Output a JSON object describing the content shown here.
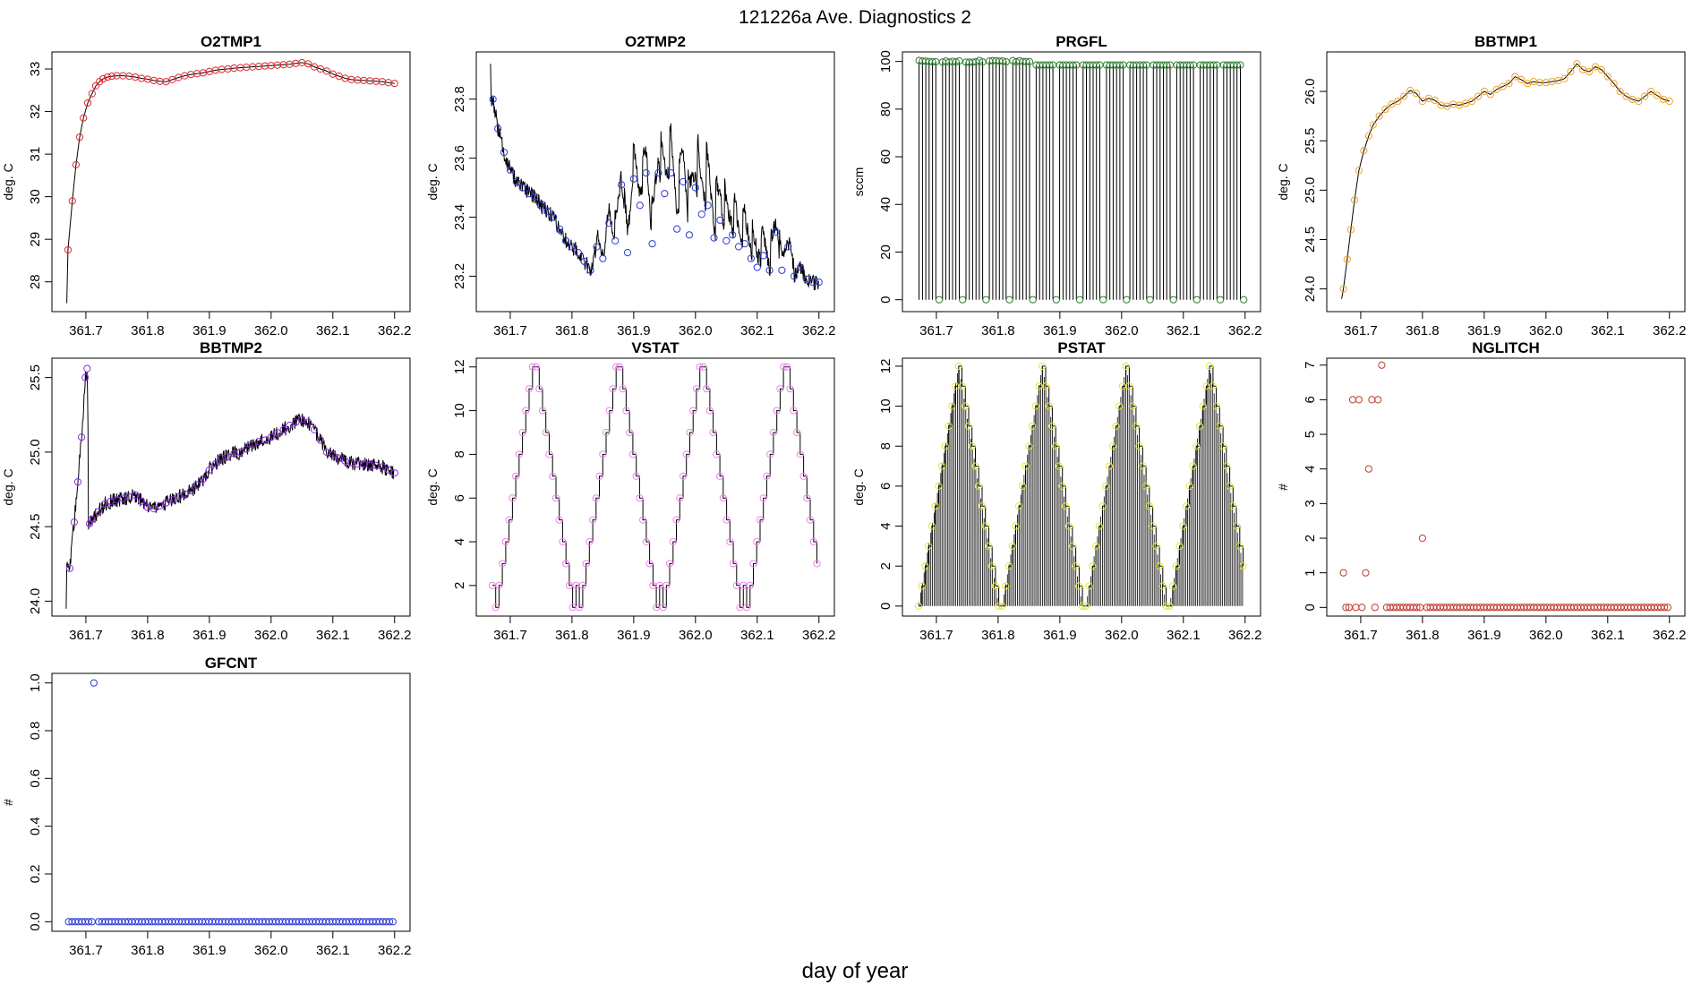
{
  "figure": {
    "title": "121226a   Ave. Diagnostics 2",
    "xlabel": "day of year"
  },
  "chart_data": [
    {
      "type": "line",
      "name": "O2TMP1",
      "title": "O2TMP1",
      "ylabel": "deg. C",
      "point_color": "#e0292f",
      "xlim": [
        361.645,
        362.225
      ],
      "ylim": [
        27.3,
        33.4
      ],
      "xticks": [
        "361.7",
        "361.8",
        "361.9",
        "362.0",
        "362.1",
        "362.2"
      ],
      "yticks": [
        "28",
        "29",
        "30",
        "31",
        "32",
        "33"
      ],
      "series_points": [
        [
          361.671,
          28.75
        ],
        [
          361.678,
          29.9
        ],
        [
          361.684,
          30.75
        ],
        [
          361.69,
          31.4
        ],
        [
          361.696,
          31.85
        ],
        [
          361.703,
          32.2
        ],
        [
          361.71,
          32.42
        ],
        [
          361.716,
          32.6
        ],
        [
          361.722,
          32.7
        ],
        [
          361.728,
          32.77
        ],
        [
          361.735,
          32.81
        ],
        [
          361.742,
          32.83
        ],
        [
          361.75,
          32.84
        ],
        [
          361.76,
          32.84
        ],
        [
          361.77,
          32.83
        ],
        [
          361.78,
          32.81
        ],
        [
          361.79,
          32.78
        ],
        [
          361.8,
          32.76
        ],
        [
          361.81,
          32.73
        ],
        [
          361.82,
          32.71
        ],
        [
          361.83,
          32.7
        ],
        [
          361.84,
          32.75
        ],
        [
          361.85,
          32.8
        ],
        [
          361.86,
          32.84
        ],
        [
          361.87,
          32.87
        ],
        [
          361.88,
          32.89
        ],
        [
          361.89,
          32.91
        ],
        [
          361.9,
          32.94
        ],
        [
          361.91,
          32.97
        ],
        [
          361.92,
          32.99
        ],
        [
          361.93,
          33.0
        ],
        [
          361.94,
          33.02
        ],
        [
          361.95,
          33.03
        ],
        [
          361.96,
          33.04
        ],
        [
          361.97,
          33.05
        ],
        [
          361.98,
          33.06
        ],
        [
          361.99,
          33.07
        ],
        [
          362.0,
          33.08
        ],
        [
          362.01,
          33.09
        ],
        [
          362.02,
          33.1
        ],
        [
          362.03,
          33.11
        ],
        [
          362.04,
          33.13
        ],
        [
          362.05,
          33.15
        ],
        [
          362.06,
          33.12
        ],
        [
          362.07,
          33.05
        ],
        [
          362.08,
          33.0
        ],
        [
          362.09,
          32.95
        ],
        [
          362.1,
          32.88
        ],
        [
          362.11,
          32.83
        ],
        [
          362.12,
          32.78
        ],
        [
          362.13,
          32.75
        ],
        [
          362.14,
          32.74
        ],
        [
          362.15,
          32.73
        ],
        [
          362.16,
          32.72
        ],
        [
          362.17,
          32.71
        ],
        [
          362.18,
          32.7
        ],
        [
          362.19,
          32.68
        ],
        [
          362.2,
          32.66
        ]
      ]
    },
    {
      "type": "line",
      "name": "O2TMP2",
      "title": "O2TMP2",
      "ylabel": "deg. C",
      "point_color": "#2a3ad6",
      "xlim": [
        361.645,
        362.225
      ],
      "ylim": [
        23.08,
        23.96
      ],
      "xticks": [
        "361.7",
        "361.8",
        "361.9",
        "362.0",
        "362.1",
        "362.2"
      ],
      "yticks": [
        "23.2",
        "23.4",
        "23.6",
        "23.8"
      ],
      "series_points": [
        [
          361.672,
          23.8
        ],
        [
          361.68,
          23.7
        ],
        [
          361.69,
          23.62
        ],
        [
          361.7,
          23.56
        ],
        [
          361.71,
          23.52
        ],
        [
          361.72,
          23.5
        ],
        [
          361.73,
          23.48
        ],
        [
          361.74,
          23.47
        ],
        [
          361.75,
          23.44
        ],
        [
          361.76,
          23.42
        ],
        [
          361.77,
          23.4
        ],
        [
          361.78,
          23.36
        ],
        [
          361.79,
          23.32
        ],
        [
          361.8,
          23.3
        ],
        [
          361.81,
          23.28
        ],
        [
          361.82,
          23.25
        ],
        [
          361.83,
          23.22
        ],
        [
          361.84,
          23.3
        ],
        [
          361.85,
          23.26
        ],
        [
          361.86,
          23.38
        ],
        [
          361.87,
          23.32
        ],
        [
          361.88,
          23.51
        ],
        [
          361.89,
          23.28
        ],
        [
          361.9,
          23.53
        ],
        [
          361.91,
          23.44
        ],
        [
          361.92,
          23.55
        ],
        [
          361.93,
          23.31
        ],
        [
          361.94,
          23.55
        ],
        [
          361.95,
          23.48
        ],
        [
          361.96,
          23.55
        ],
        [
          361.97,
          23.36
        ],
        [
          361.98,
          23.52
        ],
        [
          361.99,
          23.34
        ],
        [
          362.0,
          23.5
        ],
        [
          362.01,
          23.41
        ],
        [
          362.02,
          23.44
        ],
        [
          362.03,
          23.33
        ],
        [
          362.04,
          23.39
        ],
        [
          362.05,
          23.32
        ],
        [
          362.06,
          23.34
        ],
        [
          362.07,
          23.3
        ],
        [
          362.08,
          23.31
        ],
        [
          362.09,
          23.26
        ],
        [
          362.1,
          23.23
        ],
        [
          362.11,
          23.27
        ],
        [
          362.12,
          23.22
        ],
        [
          362.13,
          23.35
        ],
        [
          362.14,
          23.22
        ],
        [
          362.15,
          23.3
        ],
        [
          362.16,
          23.2
        ],
        [
          362.17,
          23.23
        ],
        [
          362.18,
          23.19
        ],
        [
          362.19,
          23.18
        ],
        [
          362.2,
          23.18
        ]
      ]
    },
    {
      "type": "line",
      "name": "PRGFL",
      "title": "PRGFL",
      "ylabel": "sccm",
      "point_color": "#2f7d2f",
      "xlim": [
        361.645,
        362.225
      ],
      "ylim": [
        -5,
        104
      ],
      "xticks": [
        "361.7",
        "361.8",
        "361.9",
        "362.0",
        "362.1",
        "362.2"
      ],
      "yticks": [
        "0",
        "20",
        "40",
        "60",
        "80",
        "100"
      ],
      "levels": [
        100,
        98.5,
        0
      ]
    },
    {
      "type": "line",
      "name": "BBTMP1",
      "title": "BBTMP1",
      "ylabel": "deg. C",
      "point_color": "#f0a22a",
      "xlim": [
        361.645,
        362.225
      ],
      "ylim": [
        23.77,
        26.4
      ],
      "xticks": [
        "361.7",
        "361.8",
        "361.9",
        "362.0",
        "362.1",
        "362.2"
      ],
      "yticks": [
        "24.0",
        "24.5",
        "25.0",
        "25.5",
        "26.0"
      ],
      "series_points": [
        [
          361.672,
          24.0
        ],
        [
          361.678,
          24.3
        ],
        [
          361.684,
          24.6
        ],
        [
          361.69,
          24.9
        ],
        [
          361.697,
          25.2
        ],
        [
          361.705,
          25.4
        ],
        [
          361.713,
          25.55
        ],
        [
          361.72,
          25.66
        ],
        [
          361.73,
          25.75
        ],
        [
          361.74,
          25.82
        ],
        [
          361.75,
          25.87
        ],
        [
          361.76,
          25.9
        ],
        [
          361.77,
          25.95
        ],
        [
          361.78,
          26.01
        ],
        [
          361.79,
          25.98
        ],
        [
          361.8,
          25.9
        ],
        [
          361.81,
          25.93
        ],
        [
          361.82,
          25.91
        ],
        [
          361.83,
          25.86
        ],
        [
          361.84,
          25.85
        ],
        [
          361.85,
          25.87
        ],
        [
          361.86,
          25.86
        ],
        [
          361.87,
          25.88
        ],
        [
          361.88,
          25.9
        ],
        [
          361.89,
          25.95
        ],
        [
          361.9,
          26.0
        ],
        [
          361.91,
          25.97
        ],
        [
          361.92,
          26.02
        ],
        [
          361.93,
          26.05
        ],
        [
          361.94,
          26.08
        ],
        [
          361.95,
          26.15
        ],
        [
          361.96,
          26.12
        ],
        [
          361.97,
          26.08
        ],
        [
          361.98,
          26.1
        ],
        [
          361.99,
          26.09
        ],
        [
          362.0,
          26.09
        ],
        [
          362.01,
          26.1
        ],
        [
          362.02,
          26.11
        ],
        [
          362.03,
          26.13
        ],
        [
          362.04,
          26.2
        ],
        [
          362.05,
          26.28
        ],
        [
          362.06,
          26.22
        ],
        [
          362.07,
          26.2
        ],
        [
          362.08,
          26.25
        ],
        [
          362.09,
          26.22
        ],
        [
          362.1,
          26.15
        ],
        [
          362.11,
          26.08
        ],
        [
          362.12,
          26.0
        ],
        [
          362.13,
          25.95
        ],
        [
          362.14,
          25.92
        ],
        [
          362.15,
          25.9
        ],
        [
          362.16,
          25.95
        ],
        [
          362.17,
          26.0
        ],
        [
          362.18,
          25.96
        ],
        [
          362.19,
          25.92
        ],
        [
          362.2,
          25.9
        ]
      ]
    },
    {
      "type": "line",
      "name": "BBTMP2",
      "title": "BBTMP2",
      "ylabel": "deg. C",
      "point_color": "#8a2be2",
      "xlim": [
        361.645,
        362.225
      ],
      "ylim": [
        23.9,
        25.63
      ],
      "xticks": [
        "361.7",
        "361.8",
        "361.9",
        "362.0",
        "362.1",
        "362.2"
      ],
      "yticks": [
        "24.0",
        "24.5",
        "25.0",
        "25.5"
      ],
      "series_points": [
        [
          361.674,
          24.22
        ],
        [
          361.681,
          24.53
        ],
        [
          361.687,
          24.8
        ],
        [
          361.693,
          25.1
        ],
        [
          361.699,
          25.5
        ],
        [
          361.702,
          25.56
        ],
        [
          361.706,
          24.52
        ],
        [
          361.71,
          24.55
        ],
        [
          361.72,
          24.6
        ],
        [
          361.73,
          24.65
        ],
        [
          361.74,
          24.67
        ],
        [
          361.75,
          24.68
        ],
        [
          361.76,
          24.69
        ],
        [
          361.77,
          24.7
        ],
        [
          361.78,
          24.71
        ],
        [
          361.79,
          24.67
        ],
        [
          361.8,
          24.63
        ],
        [
          361.81,
          24.62
        ],
        [
          361.82,
          24.64
        ],
        [
          361.83,
          24.66
        ],
        [
          361.84,
          24.68
        ],
        [
          361.85,
          24.7
        ],
        [
          361.86,
          24.72
        ],
        [
          361.87,
          24.74
        ],
        [
          361.88,
          24.78
        ],
        [
          361.89,
          24.82
        ],
        [
          361.9,
          24.88
        ],
        [
          361.91,
          24.92
        ],
        [
          361.92,
          24.96
        ],
        [
          361.93,
          24.97
        ],
        [
          361.94,
          24.99
        ],
        [
          361.95,
          25.0
        ],
        [
          361.96,
          25.02
        ],
        [
          361.97,
          25.05
        ],
        [
          361.98,
          25.07
        ],
        [
          361.99,
          25.08
        ],
        [
          362.0,
          25.1
        ],
        [
          362.01,
          25.13
        ],
        [
          362.02,
          25.15
        ],
        [
          362.03,
          25.18
        ],
        [
          362.04,
          25.2
        ],
        [
          362.05,
          25.22
        ],
        [
          362.06,
          25.2
        ],
        [
          362.07,
          25.15
        ],
        [
          362.08,
          25.08
        ],
        [
          362.09,
          25.0
        ],
        [
          362.1,
          24.98
        ],
        [
          362.11,
          24.96
        ],
        [
          362.12,
          24.94
        ],
        [
          362.13,
          24.93
        ],
        [
          362.14,
          24.92
        ],
        [
          362.15,
          24.92
        ],
        [
          362.16,
          24.91
        ],
        [
          362.17,
          24.91
        ],
        [
          362.18,
          24.9
        ],
        [
          362.19,
          24.88
        ],
        [
          362.2,
          24.86
        ]
      ]
    },
    {
      "type": "line",
      "name": "VSTAT",
      "title": "VSTAT",
      "ylabel": "deg. C",
      "point_color": "#ee82ee",
      "xlim": [
        361.645,
        362.225
      ],
      "ylim": [
        0.6,
        12.4
      ],
      "xticks": [
        "361.7",
        "361.8",
        "361.9",
        "362.0",
        "362.1",
        "362.2"
      ],
      "yticks": [
        "2",
        "4",
        "6",
        "8",
        "10",
        "12"
      ],
      "cycle": [
        2,
        1,
        2,
        3,
        4,
        5,
        6,
        7,
        8,
        9,
        10,
        11,
        12,
        12,
        11,
        10,
        9,
        8,
        7,
        6,
        5,
        4,
        3,
        2,
        1
      ],
      "point_step": 0.00542
    },
    {
      "type": "line",
      "name": "PSTAT",
      "title": "PSTAT",
      "ylabel": "deg. C",
      "point_color": "#e6e62a",
      "xlim": [
        361.645,
        362.225
      ],
      "ylim": [
        -0.5,
        12.4
      ],
      "xticks": [
        "361.7",
        "361.8",
        "361.9",
        "362.0",
        "362.1",
        "362.2"
      ],
      "yticks": [
        "0",
        "2",
        "4",
        "6",
        "8",
        "10",
        "12"
      ],
      "cycle": [
        0,
        1,
        2,
        3,
        4,
        5,
        6,
        7,
        8,
        9,
        10,
        11,
        12,
        11,
        10,
        9,
        8,
        7,
        6,
        5,
        4,
        3,
        2,
        1,
        0
      ],
      "point_step": 0.00542
    },
    {
      "type": "scatter",
      "name": "NGLITCH",
      "title": "NGLITCH",
      "ylabel": "#",
      "point_color": "#c0392b",
      "xlim": [
        361.645,
        362.225
      ],
      "ylim": [
        -0.25,
        7.2
      ],
      "xticks": [
        "361.7",
        "361.8",
        "361.9",
        "362.0",
        "362.1",
        "362.2"
      ],
      "yticks": [
        "0",
        "1",
        "2",
        "3",
        "4",
        "5",
        "6",
        "7"
      ],
      "points": [
        [
          361.672,
          1
        ],
        [
          361.676,
          0
        ],
        [
          361.681,
          0
        ],
        [
          361.687,
          6
        ],
        [
          361.692,
          0
        ],
        [
          361.697,
          6
        ],
        [
          361.702,
          0
        ],
        [
          361.708,
          1
        ],
        [
          361.713,
          4
        ],
        [
          361.718,
          6
        ],
        [
          361.723,
          0
        ],
        [
          361.728,
          6
        ],
        [
          361.734,
          7
        ],
        [
          361.8,
          2
        ]
      ],
      "baseline": 0,
      "baseline_step": 0.00542
    },
    {
      "type": "scatter",
      "name": "GFCNT",
      "title": "GFCNT",
      "ylabel": "#",
      "point_color": "#2a3ad6",
      "xlim": [
        361.645,
        362.225
      ],
      "ylim": [
        -0.04,
        1.04
      ],
      "xticks": [
        "361.7",
        "361.8",
        "361.9",
        "362.0",
        "362.1",
        "362.2"
      ],
      "yticks": [
        "0.0",
        "0.2",
        "0.4",
        "0.6",
        "0.8",
        "1.0"
      ],
      "points": [
        [
          361.713,
          1
        ]
      ],
      "baseline": 0,
      "baseline_step": 0.00542
    }
  ]
}
